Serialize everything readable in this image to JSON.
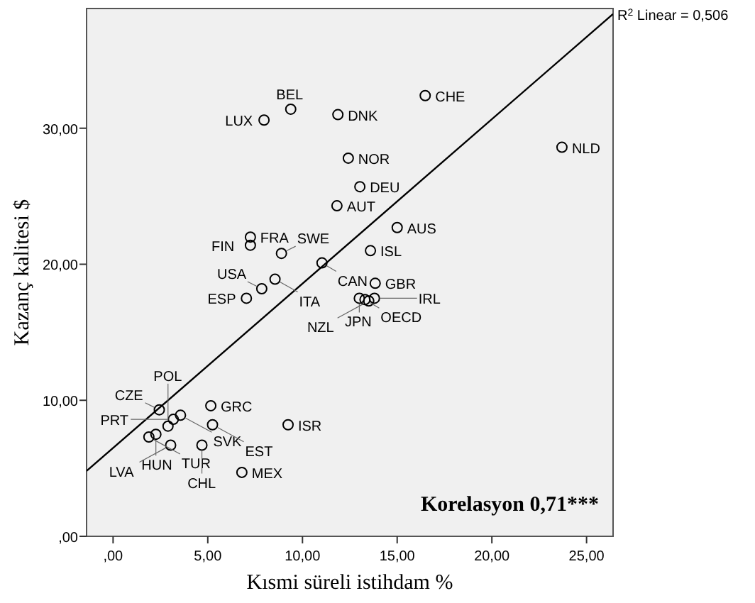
{
  "chart_data": {
    "type": "scatter",
    "xlabel": "Kısmi süreli istihdam %",
    "ylabel": "Kazanç kalitesi $",
    "xlim": [
      -1.4,
      26.4
    ],
    "ylim": [
      0,
      38.8
    ],
    "xticks": [
      {
        "value": 0,
        "label": ",00"
      },
      {
        "value": 5,
        "label": "5,00"
      },
      {
        "value": 10,
        "label": "10,00"
      },
      {
        "value": 15,
        "label": "15,00"
      },
      {
        "value": 20,
        "label": "20,00"
      },
      {
        "value": 25,
        "label": "25,00"
      }
    ],
    "yticks": [
      {
        "value": 0,
        "label": ",00"
      },
      {
        "value": 10,
        "label": "10,00"
      },
      {
        "value": 20,
        "label": "20,00"
      },
      {
        "value": 30,
        "label": "30,00"
      }
    ],
    "grid": false,
    "marker": "circle",
    "series": [
      {
        "color": "#000000",
        "x": [
          7.97,
          9.38,
          11.87,
          12.42,
          11.82,
          7.25,
          7.25,
          8.89,
          11.03,
          7.85,
          8.55,
          7.04,
          16.48,
          23.7,
          13.03,
          15.0,
          13.59,
          13.84,
          13.0,
          13.3,
          13.5,
          13.8,
          2.44,
          3.56,
          5.16,
          5.25,
          3.18,
          2.26,
          1.89,
          2.9,
          3.04,
          4.69,
          6.8,
          9.24
        ],
        "values": [
          30.6,
          31.4,
          31.0,
          27.8,
          24.3,
          22.0,
          21.4,
          20.8,
          20.1,
          18.2,
          18.9,
          17.5,
          32.4,
          28.6,
          25.7,
          22.7,
          21.0,
          18.6,
          17.5,
          17.4,
          17.3,
          17.5,
          9.3,
          8.9,
          9.6,
          8.2,
          8.6,
          7.5,
          7.3,
          8.1,
          6.7,
          6.7,
          4.7,
          8.2
        ]
      },
      {
        "type": "line",
        "color": "#000000",
        "marker": "none",
        "x": [
          -1.4,
          26.4
        ],
        "values": [
          4.8,
          38.4
        ]
      }
    ],
    "annotations": [
      {
        "text": "LUX",
        "x": 7.97,
        "y": 30.6
      },
      {
        "text": "BEL",
        "x": 9.38,
        "y": 31.4
      },
      {
        "text": "DNK",
        "x": 11.87,
        "y": 31.0
      },
      {
        "text": "NOR",
        "x": 12.42,
        "y": 27.8
      },
      {
        "text": "AUT",
        "x": 11.82,
        "y": 24.3
      },
      {
        "text": "FRA",
        "x": 7.25,
        "y": 22.0
      },
      {
        "text": "FIN",
        "x": 7.25,
        "y": 21.4
      },
      {
        "text": "SWE",
        "x": 8.89,
        "y": 20.8
      },
      {
        "text": "CAN",
        "x": 11.03,
        "y": 20.1
      },
      {
        "text": "USA",
        "x": 7.85,
        "y": 18.2
      },
      {
        "text": "ITA",
        "x": 8.55,
        "y": 18.9
      },
      {
        "text": "ESP",
        "x": 7.04,
        "y": 17.5
      },
      {
        "text": "CHE",
        "x": 16.48,
        "y": 32.4
      },
      {
        "text": "NLD",
        "x": 23.7,
        "y": 28.6
      },
      {
        "text": "DEU",
        "x": 13.03,
        "y": 25.7
      },
      {
        "text": "AUS",
        "x": 15.0,
        "y": 22.7
      },
      {
        "text": "ISL",
        "x": 13.59,
        "y": 21.0
      },
      {
        "text": "GBR",
        "x": 13.84,
        "y": 18.6
      },
      {
        "text": "JPN",
        "x": 13.0,
        "y": 17.5
      },
      {
        "text": "OECD",
        "x": 13.3,
        "y": 17.4
      },
      {
        "text": "NZL",
        "x": 13.5,
        "y": 17.3
      },
      {
        "text": "IRL",
        "x": 13.8,
        "y": 17.5
      },
      {
        "text": "CZE",
        "x": 2.44,
        "y": 9.3
      },
      {
        "text": "SVK",
        "x": 3.56,
        "y": 8.9
      },
      {
        "text": "GRC",
        "x": 5.16,
        "y": 9.6
      },
      {
        "text": "EST",
        "x": 5.25,
        "y": 8.2
      },
      {
        "text": "PRT",
        "x": 3.18,
        "y": 8.6
      },
      {
        "text": "HUN",
        "x": 2.26,
        "y": 7.5
      },
      {
        "text": "TUR",
        "x": 1.89,
        "y": 7.3
      },
      {
        "text": "POL",
        "x": 2.9,
        "y": 8.1
      },
      {
        "text": "LVA",
        "x": 3.04,
        "y": 6.7
      },
      {
        "text": "CHL",
        "x": 4.69,
        "y": 6.7
      },
      {
        "text": "MEX",
        "x": 6.8,
        "y": 4.7
      },
      {
        "text": "ISR",
        "x": 9.24,
        "y": 8.2
      },
      {
        "text": "R$^{2}$ Linear = 0,506",
        "x": 26.4,
        "y": 38.4
      },
      "Korelasyon 0,71***"
    ]
  }
}
